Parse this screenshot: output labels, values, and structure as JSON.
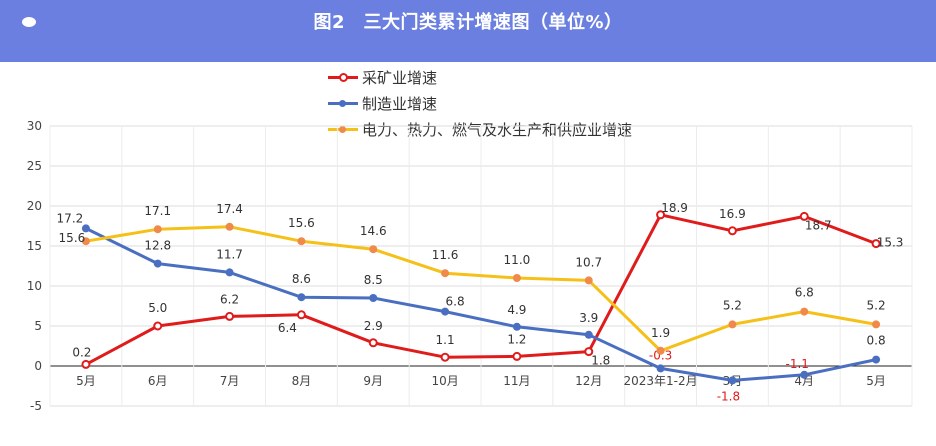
{
  "header": {
    "title": "图2　三大门类累计增速图（单位%）"
  },
  "chart_data": {
    "type": "line",
    "categories": [
      "5月",
      "6月",
      "7月",
      "8月",
      "9月",
      "10月",
      "11月",
      "12月",
      "2023年1-2月",
      "3月",
      "4月",
      "5月"
    ],
    "ylim": [
      -5,
      30
    ],
    "yticks": [
      -5,
      0,
      5,
      10,
      15,
      20,
      25,
      30
    ],
    "grid": true,
    "legend_position": "top",
    "series": [
      {
        "name": "采矿业增速",
        "color": "#e01b1b",
        "marker": "hollow",
        "values": [
          0.2,
          5.0,
          6.2,
          6.4,
          2.9,
          1.1,
          1.2,
          1.8,
          18.9,
          16.9,
          18.7,
          15.3
        ],
        "labels": [
          "0.2",
          "5.0",
          "6.2",
          "6.4",
          "2.9",
          "1.1",
          "1.2",
          "1.8",
          "18.9",
          "16.9",
          "18.7",
          "15.3"
        ]
      },
      {
        "name": "制造业增速",
        "color": "#4a6fc1",
        "marker": "filled",
        "values": [
          17.2,
          12.8,
          11.7,
          8.6,
          8.5,
          6.8,
          4.9,
          3.9,
          -0.3,
          -1.8,
          -1.1,
          0.8
        ],
        "labels": [
          "17.2",
          "12.8",
          "11.7",
          "8.6",
          "8.5",
          "6.8",
          "4.9",
          "3.9",
          "-0.3",
          "-1.8",
          "-1.1",
          "0.8"
        ]
      },
      {
        "name": "电力、热力、燃气及水生产和供应业增速",
        "color": "#f5c018",
        "marker": "filled-orange",
        "values": [
          15.6,
          17.1,
          17.4,
          15.6,
          14.6,
          11.6,
          11.0,
          10.7,
          1.9,
          5.2,
          6.8,
          5.2
        ],
        "labels": [
          "15.6",
          "17.1",
          "17.4",
          "15.6",
          "14.6",
          "11.6",
          "11.0",
          "10.7",
          "1.9",
          "5.2",
          "6.8",
          "5.2"
        ]
      }
    ]
  }
}
